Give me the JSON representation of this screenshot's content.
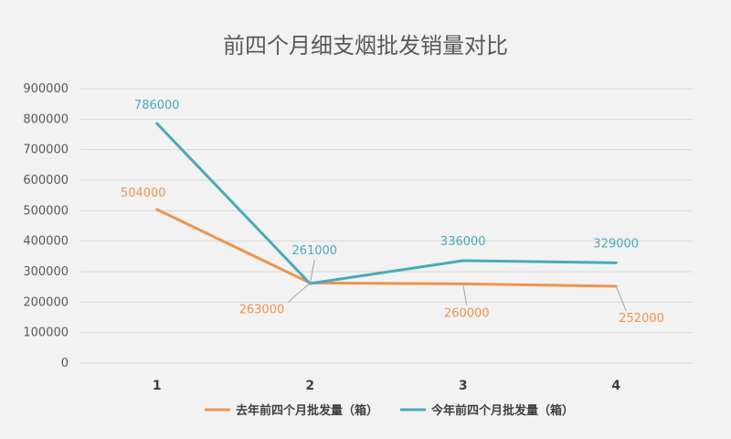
{
  "chart_data": {
    "type": "line",
    "title": "前四个月细支烟批发销量对比",
    "categories": [
      "1",
      "2",
      "3",
      "4"
    ],
    "ylim": [
      0,
      900000
    ],
    "yticks": [
      0,
      100000,
      200000,
      300000,
      400000,
      500000,
      600000,
      700000,
      800000,
      900000
    ],
    "grid": true,
    "legend_position": "bottom",
    "series": [
      {
        "name": "去年前四个月批发量（箱）",
        "values": [
          504000,
          263000,
          260000,
          252000
        ],
        "labels": [
          "504000",
          "263000",
          "260000",
          "252000"
        ],
        "color": "#ed9450"
      },
      {
        "name": "今年前四个月批发量（箱）",
        "values": [
          786000,
          261000,
          336000,
          329000
        ],
        "labels": [
          "786000",
          "261000",
          "336000",
          "329000"
        ],
        "color": "#4aaab8"
      }
    ]
  }
}
